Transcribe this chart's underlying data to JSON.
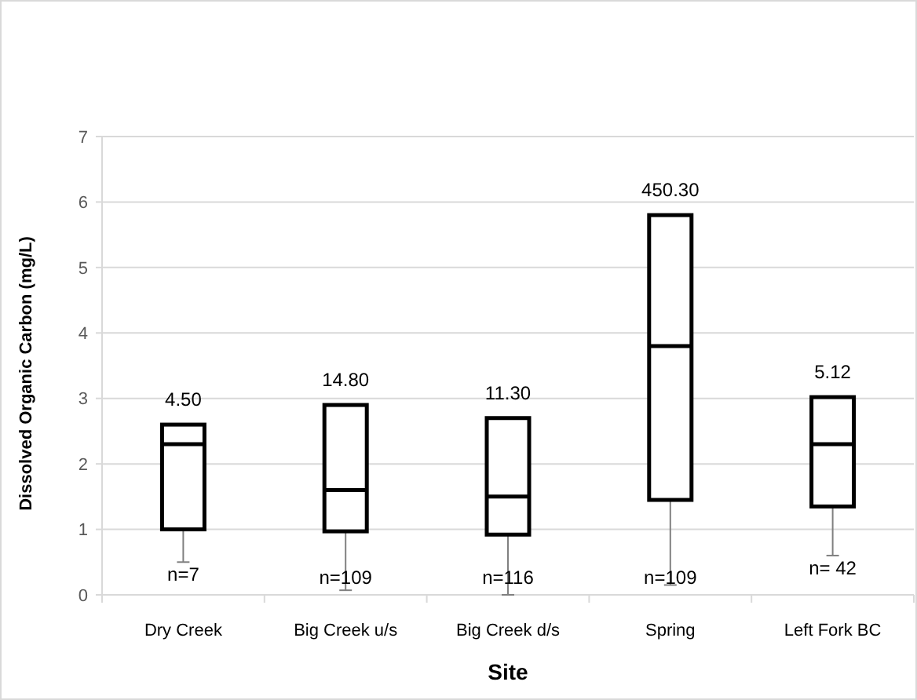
{
  "chart_data": {
    "type": "box",
    "xlabel": "Site",
    "ylabel": "Dissolved Organic Carbon (mg/L)",
    "categories": [
      "Dry Creek",
      "Big Creek  u/s",
      "Big Creek d/s",
      "Spring",
      "Left Fork BC"
    ],
    "boxes": [
      {
        "low": 0.5,
        "q1": 1.0,
        "median": 2.3,
        "q3": 2.6,
        "high": 2.6
      },
      {
        "low": 0.07,
        "q1": 0.97,
        "median": 1.6,
        "q3": 2.9,
        "high": 2.9
      },
      {
        "low": 0.0,
        "q1": 0.92,
        "median": 1.5,
        "q3": 2.7,
        "high": 2.7
      },
      {
        "low": 0.15,
        "q1": 1.45,
        "median": 3.8,
        "q3": 5.8,
        "high": 5.8
      },
      {
        "low": 0.6,
        "q1": 1.35,
        "median": 2.3,
        "q3": 3.02,
        "high": 3.02
      }
    ],
    "ylim": [
      0,
      7
    ],
    "yticks": [
      0,
      1,
      2,
      3,
      4,
      5,
      6,
      7
    ],
    "grid": "y",
    "annotations": [
      {
        "text": "4.50",
        "x": "Dry Creek",
        "y": 2.6
      },
      {
        "text": "14.80",
        "x": "Big Creek  u/s",
        "y": 2.9
      },
      {
        "text": "11.30",
        "x": "Big Creek d/s",
        "y": 2.7
      },
      {
        "text": "450.30",
        "x": "Spring",
        "y": 5.8
      },
      {
        "text": "5.12",
        "x": "Left Fork BC",
        "y": 3.02
      },
      {
        "text": "n=7",
        "x": "Dry Creek",
        "y": 0.5
      },
      {
        "text": "n=109",
        "x": "Big Creek  u/s",
        "y": 0.07
      },
      {
        "text": "n=116",
        "x": "Big Creek d/s",
        "y": 0.0
      },
      {
        "text": "n=109",
        "x": "Spring",
        "y": 0.15
      },
      {
        "text": "n= 42",
        "x": "Left Fork BC",
        "y": 0.6
      }
    ]
  }
}
